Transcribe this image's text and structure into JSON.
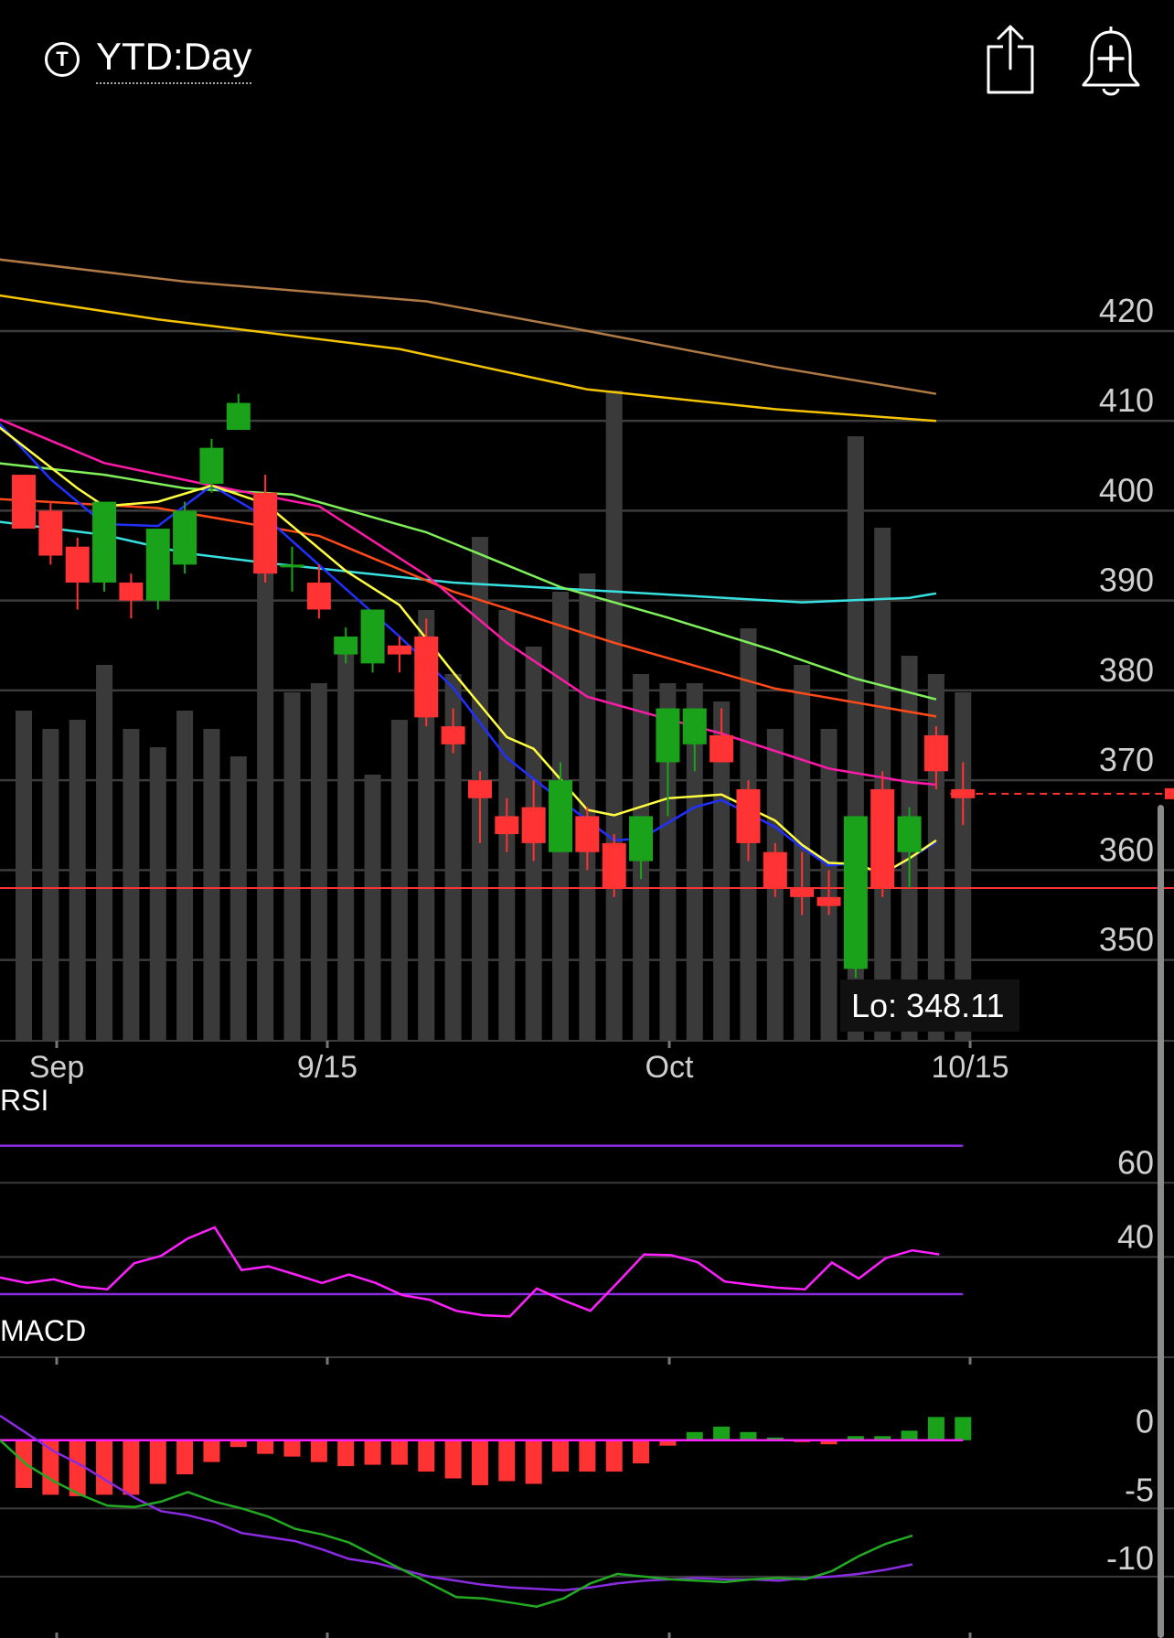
{
  "header": {
    "period_icon": "T",
    "period_label": "YTD:Day",
    "share_icon": "share-icon",
    "alert_icon": "bell-plus-icon"
  },
  "colors": {
    "up": "#1aa31a",
    "down": "#ff3333",
    "volume": "#3a3a3a",
    "grid": "#3c3c3c",
    "sma200": "#b07a45",
    "sma100": "#f5c400",
    "sma50_cyan": "#38e0e0",
    "sma50": "#ff4a1a",
    "sma30": "#7ff05a",
    "sma20": "#ff1aa8",
    "ema9": "#2030ff",
    "sma5": "#ffff40",
    "rsi": "#ff20ff",
    "rsi_bands": "#8a2be2",
    "macd_line": "#8a2be2",
    "macd_signal": "#22aa22",
    "macd_zero": "#ff20ff"
  },
  "chart_data": [
    {
      "type": "candlestick",
      "title": "",
      "x_labels": [
        "Sep",
        "9/15",
        "Oct",
        "10/15"
      ],
      "y_ticks": [
        "420",
        "410",
        "400",
        "390",
        "380",
        "370",
        "360",
        "350"
      ],
      "ylim": [
        341,
        443
      ],
      "low_label": "Lo: 348.11",
      "support_line": 358,
      "last_price_marker": 368.5,
      "candles": [
        {
          "o": 404,
          "c": 398,
          "h": 404,
          "l": 398
        },
        {
          "o": 400,
          "c": 395,
          "h": 401,
          "l": 394
        },
        {
          "o": 396,
          "c": 392,
          "h": 397,
          "l": 389
        },
        {
          "o": 392,
          "c": 401,
          "h": 401,
          "l": 391
        },
        {
          "o": 392,
          "c": 390,
          "h": 393,
          "l": 388
        },
        {
          "o": 390,
          "c": 398,
          "h": 398,
          "l": 389
        },
        {
          "o": 394,
          "c": 400,
          "h": 401,
          "l": 393
        },
        {
          "o": 403,
          "c": 407,
          "h": 408,
          "l": 402
        },
        {
          "o": 409,
          "c": 412,
          "h": 413,
          "l": 409
        },
        {
          "o": 402,
          "c": 393,
          "h": 404,
          "l": 392
        },
        {
          "o": 394,
          "c": 394,
          "h": 396,
          "l": 391
        },
        {
          "o": 392,
          "c": 389,
          "h": 394,
          "l": 388
        },
        {
          "o": 384,
          "c": 386,
          "h": 387,
          "l": 383
        },
        {
          "o": 383,
          "c": 389,
          "h": 389,
          "l": 382
        },
        {
          "o": 385,
          "c": 384,
          "h": 386,
          "l": 382
        },
        {
          "o": 386,
          "c": 377,
          "h": 388,
          "l": 376
        },
        {
          "o": 376,
          "c": 374,
          "h": 378,
          "l": 373
        },
        {
          "o": 370,
          "c": 368,
          "h": 371,
          "l": 363
        },
        {
          "o": 366,
          "c": 364,
          "h": 368,
          "l": 362
        },
        {
          "o": 367,
          "c": 363,
          "h": 370,
          "l": 361
        },
        {
          "o": 362,
          "c": 370,
          "h": 372,
          "l": 362
        },
        {
          "o": 366,
          "c": 362,
          "h": 367,
          "l": 360
        },
        {
          "o": 363,
          "c": 358,
          "h": 364,
          "l": 357
        },
        {
          "o": 361,
          "c": 366,
          "h": 366,
          "l": 359
        },
        {
          "o": 372,
          "c": 378,
          "h": 378,
          "l": 366
        },
        {
          "o": 374,
          "c": 378,
          "h": 378,
          "l": 371
        },
        {
          "o": 375,
          "c": 372,
          "h": 378,
          "l": 372
        },
        {
          "o": 369,
          "c": 363,
          "h": 370,
          "l": 361
        },
        {
          "o": 362,
          "c": 358,
          "h": 363,
          "l": 357
        },
        {
          "o": 358,
          "c": 357,
          "h": 362,
          "l": 355
        },
        {
          "o": 357,
          "c": 356,
          "h": 360,
          "l": 355
        },
        {
          "o": 349,
          "c": 366,
          "h": 366,
          "l": 348
        },
        {
          "o": 369,
          "c": 358,
          "h": 371,
          "l": 357
        },
        {
          "o": 362,
          "c": 366,
          "h": 367,
          "l": 358
        },
        {
          "o": 375,
          "c": 371,
          "h": 376,
          "l": 369
        },
        {
          "o": 369,
          "c": 368,
          "h": 372,
          "l": 365
        }
      ],
      "volume_relative": [
        0.36,
        0.34,
        0.35,
        0.41,
        0.34,
        0.32,
        0.36,
        0.34,
        0.31,
        0.56,
        0.38,
        0.39,
        0.43,
        0.29,
        0.35,
        0.47,
        0.4,
        0.55,
        0.47,
        0.43,
        0.49,
        0.51,
        0.71,
        0.4,
        0.39,
        0.39,
        0.37,
        0.45,
        0.34,
        0.41,
        0.34,
        0.66,
        0.56,
        0.42,
        0.4,
        0.38
      ],
      "overlays": [
        {
          "color_key": "sma200",
          "points": [
            [
              -1,
              428
            ],
            [
              6,
              425.5
            ],
            [
              15,
              423.3
            ],
            [
              21,
              420
            ],
            [
              28,
              416
            ],
            [
              34,
              413
            ]
          ]
        },
        {
          "color_key": "sma100",
          "points": [
            [
              -1,
              424
            ],
            [
              5,
              421.3
            ],
            [
              14,
              418
            ],
            [
              21,
              413.5
            ],
            [
              28,
              411.3
            ],
            [
              34,
              410
            ]
          ]
        },
        {
          "color_key": "sma50_cyan",
          "points": [
            [
              -1,
              398.8
            ],
            [
              3,
              397.3
            ],
            [
              6,
              395.3
            ],
            [
              9,
              394.2
            ],
            [
              16,
              392
            ],
            [
              22,
              391
            ],
            [
              29,
              389.8
            ],
            [
              33,
              390.3
            ],
            [
              34,
              390.8
            ]
          ]
        },
        {
          "color_key": "sma50",
          "points": [
            [
              -1,
              401.3
            ],
            [
              5,
              400.3
            ],
            [
              11,
              397.2
            ],
            [
              16,
              391
            ],
            [
              22,
              385.3
            ],
            [
              28,
              380.2
            ],
            [
              34,
              377.1
            ]
          ]
        },
        {
          "color_key": "sma30",
          "points": [
            [
              -1,
              405.3
            ],
            [
              3,
              404
            ],
            [
              6,
              402.5
            ],
            [
              10,
              401.8
            ],
            [
              15,
              397.6
            ],
            [
              20,
              391.5
            ],
            [
              24,
              388.1
            ],
            [
              28,
              384.4
            ],
            [
              31,
              381.3
            ],
            [
              34,
              379
            ]
          ]
        },
        {
          "color_key": "sma20",
          "points": [
            [
              -1,
              410.3
            ],
            [
              3,
              405.3
            ],
            [
              7,
              402.8
            ],
            [
              11,
              400.5
            ],
            [
              15,
              392.8
            ],
            [
              18,
              385.3
            ],
            [
              21,
              379.3
            ],
            [
              24,
              376.8
            ],
            [
              26,
              375.2
            ],
            [
              30,
              371.3
            ],
            [
              33,
              369.8
            ],
            [
              34,
              369.5
            ]
          ]
        },
        {
          "color_key": "ema9",
          "points": [
            [
              -1,
              410
            ],
            [
              1,
              403.5
            ],
            [
              3,
              398.5
            ],
            [
              5,
              398.3
            ],
            [
              7,
              402.8
            ],
            [
              9,
              399.3
            ],
            [
              12,
              391.3
            ],
            [
              14,
              386
            ],
            [
              16,
              380.3
            ],
            [
              18,
              372.5
            ],
            [
              20,
              367.8
            ],
            [
              22,
              363.3
            ],
            [
              23,
              363.5
            ],
            [
              25,
              367
            ],
            [
              26,
              367.8
            ],
            [
              28,
              364.8
            ],
            [
              29,
              362.5
            ],
            [
              30,
              360.5
            ],
            [
              31,
              360.8
            ],
            [
              32,
              359.5
            ],
            [
              33,
              361.3
            ],
            [
              34,
              363.1
            ]
          ]
        },
        {
          "color_key": "sma5",
          "points": [
            [
              -1,
              409.5
            ],
            [
              2,
              402.5
            ],
            [
              3,
              400.5
            ],
            [
              5,
              401
            ],
            [
              7,
              402.8
            ],
            [
              9,
              400.8
            ],
            [
              12,
              393.3
            ],
            [
              14,
              389.5
            ],
            [
              16,
              382
            ],
            [
              18,
              374.8
            ],
            [
              19,
              373.5
            ],
            [
              21,
              366.7
            ],
            [
              22,
              366.1
            ],
            [
              24,
              368
            ],
            [
              26,
              368.4
            ],
            [
              28,
              365.5
            ],
            [
              29,
              362.8
            ],
            [
              30,
              360.8
            ],
            [
              31,
              360.7
            ],
            [
              32,
              359.6
            ],
            [
              33,
              361.3
            ],
            [
              34,
              363.3
            ]
          ]
        }
      ]
    },
    {
      "type": "line",
      "title": "RSI",
      "y_ticks": [
        "60",
        "40"
      ],
      "ylim": [
        13,
        82
      ],
      "bands": [
        70,
        30
      ],
      "series": [
        {
          "values": [
            34.5,
            33,
            34,
            32,
            31.3,
            38.3,
            40.3,
            45,
            48,
            36.5,
            37.5,
            35.3,
            33,
            35.3,
            33,
            29.7,
            28.5,
            25.5,
            24.3,
            24,
            31.5,
            28.3,
            25.5,
            33,
            40.7,
            40.5,
            38.6,
            33.4,
            32.5,
            31.7,
            31.3,
            38.5,
            34.2,
            39.7,
            41.8,
            40.7
          ]
        }
      ]
    },
    {
      "type": "bar",
      "title": "MACD",
      "y_ticks": [
        "0",
        "-5",
        "-10"
      ],
      "ylim": [
        -14.5,
        3
      ],
      "histogram": [
        -3.5,
        -4,
        -4.1,
        -4,
        -4,
        -3.2,
        -2.5,
        -1.6,
        -0.5,
        -1,
        -1.2,
        -1.6,
        -1.9,
        -1.8,
        -1.8,
        -2.3,
        -2.8,
        -3.3,
        -3,
        -3.2,
        -2.3,
        -2.3,
        -2.3,
        -1.7,
        -0.4,
        0.6,
        1,
        0.6,
        0.2,
        -0.1,
        -0.3,
        0.3,
        0.3,
        0.7,
        1.7,
        1.7
      ],
      "series": [
        {
          "values": [
            1.8,
            0.5,
            -0.8,
            -1.8,
            -3,
            -4.2,
            -5.2,
            -5.5,
            -6,
            -6.8,
            -7.1,
            -7.4,
            -8,
            -8.7,
            -9,
            -9.5,
            -10,
            -10.3,
            -10.6,
            -10.8,
            -10.9,
            -11,
            -10.8,
            -10.5,
            -10.3,
            -10.2,
            -10.1,
            -10.2,
            -10.2,
            -10.3,
            -10.1,
            -10,
            -9.8,
            -9.5,
            -9.1
          ]
        },
        {
          "values": [
            0,
            -1.8,
            -3,
            -4,
            -4.8,
            -4.9,
            -4.5,
            -3.8,
            -4.5,
            -5,
            -5.6,
            -6.5,
            -6.9,
            -7.5,
            -8.5,
            -9.5,
            -10.5,
            -11.5,
            -11.6,
            -11.9,
            -12.2,
            -11.6,
            -10.5,
            -9.8,
            -10,
            -10.2,
            -10.3,
            -10.4,
            -10.2,
            -10.1,
            -10.2,
            -9.6,
            -8.5,
            -7.6,
            -7
          ]
        }
      ]
    }
  ]
}
